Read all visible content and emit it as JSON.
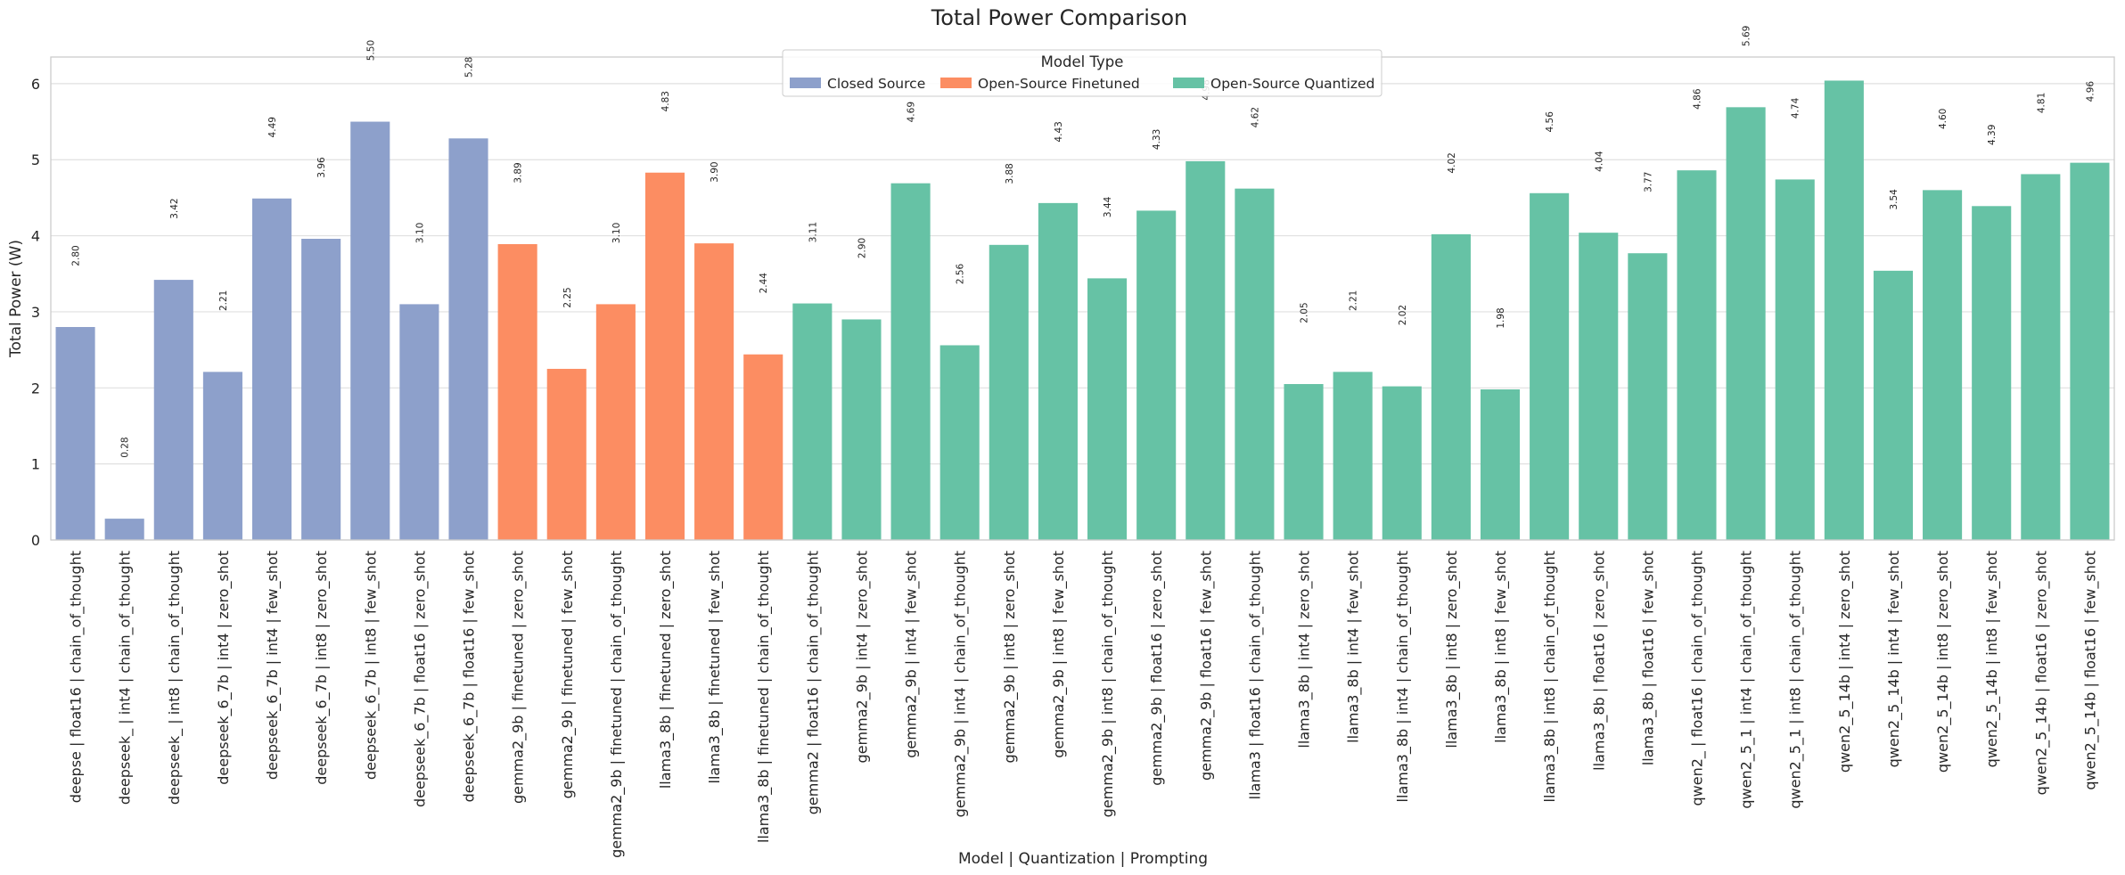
{
  "chart_data": {
    "type": "bar",
    "title": "Total Power Comparison",
    "xlabel": "Model | Quantization | Prompting",
    "ylabel": "Total Power (W)",
    "ylim": [
      0,
      6.35
    ],
    "yticks": [
      0,
      1,
      2,
      3,
      4,
      5,
      6
    ],
    "grid": true,
    "legend": {
      "title": "Model Type",
      "placement": "top-center",
      "entries": [
        {
          "name": "Closed Source",
          "color": "#8da0cb"
        },
        {
          "name": "Open-Source Finetuned",
          "color": "#fc8d62"
        },
        {
          "name": "Open-Source Quantized",
          "color": "#66c2a5"
        }
      ]
    },
    "bars": [
      {
        "category": "deepse | float16 | chain_of_thought",
        "value": 2.8,
        "label": "2.80",
        "group": 0
      },
      {
        "category": "deepseek_ | int4 | chain_of_thought",
        "value": 0.28,
        "label": "0.28",
        "group": 0
      },
      {
        "category": "deepseek_ | int8 | chain_of_thought",
        "value": 3.42,
        "label": "3.42",
        "group": 0
      },
      {
        "category": "deepseek_6_7b | int4 | zero_shot",
        "value": 2.21,
        "label": "2.21",
        "group": 0
      },
      {
        "category": "deepseek_6_7b | int4 | few_shot",
        "value": 4.49,
        "label": "4.49",
        "group": 0
      },
      {
        "category": "deepseek_6_7b | int8 | zero_shot",
        "value": 3.96,
        "label": "3.96",
        "group": 0
      },
      {
        "category": "deepseek_6_7b | int8 | few_shot",
        "value": 5.5,
        "label": "5.50",
        "group": 0
      },
      {
        "category": "deepseek_6_7b | float16 | zero_shot",
        "value": 3.1,
        "label": "3.10",
        "group": 0
      },
      {
        "category": "deepseek_6_7b | float16 | few_shot",
        "value": 5.28,
        "label": "5.28",
        "group": 0
      },
      {
        "category": "gemma2_9b | finetuned | zero_shot",
        "value": 3.89,
        "label": "3.89",
        "group": 1
      },
      {
        "category": "gemma2_9b | finetuned | few_shot",
        "value": 2.25,
        "label": "2.25",
        "group": 1
      },
      {
        "category": "gemma2_9b | finetuned | chain_of_thought",
        "value": 3.1,
        "label": "3.10",
        "group": 1
      },
      {
        "category": "llama3_8b | finetuned | zero_shot",
        "value": 4.83,
        "label": "4.83",
        "group": 1
      },
      {
        "category": "llama3_8b | finetuned | few_shot",
        "value": 3.9,
        "label": "3.90",
        "group": 1
      },
      {
        "category": "llama3_8b | finetuned | chain_of_thought",
        "value": 2.44,
        "label": "2.44",
        "group": 1
      },
      {
        "category": "gemma2 | float16 | chain_of_thought",
        "value": 3.11,
        "label": "3.11",
        "group": 2
      },
      {
        "category": "gemma2_9b | int4 | zero_shot",
        "value": 2.9,
        "label": "2.90",
        "group": 2
      },
      {
        "category": "gemma2_9b | int4 | few_shot",
        "value": 4.69,
        "label": "4.69",
        "group": 2
      },
      {
        "category": "gemma2_9b | int4 | chain_of_thought",
        "value": 2.56,
        "label": "2.56",
        "group": 2
      },
      {
        "category": "gemma2_9b | int8 | zero_shot",
        "value": 3.88,
        "label": "3.88",
        "group": 2
      },
      {
        "category": "gemma2_9b | int8 | few_shot",
        "value": 4.43,
        "label": "4.43",
        "group": 2
      },
      {
        "category": "gemma2_9b | int8 | chain_of_thought",
        "value": 3.44,
        "label": "3.44",
        "group": 2
      },
      {
        "category": "gemma2_9b | float16 | zero_shot",
        "value": 4.33,
        "label": "4.33",
        "group": 2
      },
      {
        "category": "gemma2_9b | float16 | few_shot",
        "value": 4.98,
        "label": "4.98",
        "group": 2
      },
      {
        "category": "llama3 | float16 | chain_of_thought",
        "value": 4.62,
        "label": "4.62",
        "group": 2
      },
      {
        "category": "llama3_8b | int4 | zero_shot",
        "value": 2.05,
        "label": "2.05",
        "group": 2
      },
      {
        "category": "llama3_8b | int4 | few_shot",
        "value": 2.21,
        "label": "2.21",
        "group": 2
      },
      {
        "category": "llama3_8b | int4 | chain_of_thought",
        "value": 2.02,
        "label": "2.02",
        "group": 2
      },
      {
        "category": "llama3_8b | int8 | zero_shot",
        "value": 4.02,
        "label": "4.02",
        "group": 2
      },
      {
        "category": "llama3_8b | int8 | few_shot",
        "value": 1.98,
        "label": "1.98",
        "group": 2
      },
      {
        "category": "llama3_8b | int8 | chain_of_thought",
        "value": 4.56,
        "label": "4.56",
        "group": 2
      },
      {
        "category": "llama3_8b | float16 | zero_shot",
        "value": 4.04,
        "label": "4.04",
        "group": 2
      },
      {
        "category": "llama3_8b | float16 | few_shot",
        "value": 3.77,
        "label": "3.77",
        "group": 2
      },
      {
        "category": "qwen2_ | float16 | chain_of_thought",
        "value": 4.86,
        "label": "4.86",
        "group": 2
      },
      {
        "category": "qwen2_5_1 | int4 | chain_of_thought",
        "value": 5.69,
        "label": "5.69",
        "group": 2
      },
      {
        "category": "qwen2_5_1 | int8 | chain_of_thought",
        "value": 4.74,
        "label": "4.74",
        "group": 2
      },
      {
        "category": "qwen2_5_14b | int4 | zero_shot",
        "value": 6.04,
        "label": "",
        "group": 2
      },
      {
        "category": "qwen2_5_14b | int4 | few_shot",
        "value": 3.54,
        "label": "3.54",
        "group": 2
      },
      {
        "category": "qwen2_5_14b | int8 | zero_shot",
        "value": 4.6,
        "label": "4.60",
        "group": 2
      },
      {
        "category": "qwen2_5_14b | int8 | few_shot",
        "value": 4.39,
        "label": "4.39",
        "group": 2
      },
      {
        "category": "qwen2_5_14b | float16 | zero_shot",
        "value": 4.81,
        "label": "4.81",
        "group": 2
      },
      {
        "category": "qwen2_5_14b | float16 | few_shot",
        "value": 4.96,
        "label": "4.96",
        "group": 2
      }
    ]
  }
}
